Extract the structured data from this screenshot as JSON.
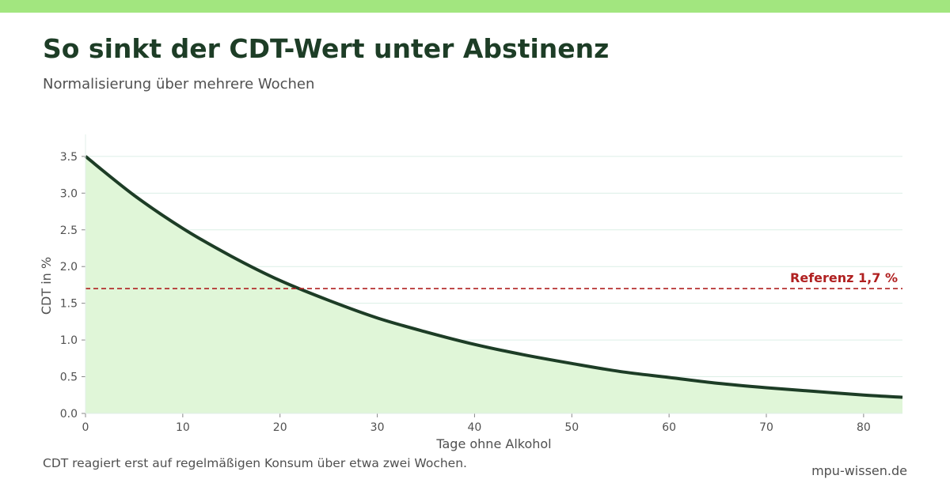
{
  "header": {
    "title": "So sinkt der CDT-Wert unter Abstinenz",
    "subtitle": "Normalisierung über mehrere Wochen"
  },
  "footer": {
    "note": "CDT reagiert erst auf regelmäßigen Konsum über etwa zwei Wochen.",
    "source": "mpu-wissen.de"
  },
  "colors": {
    "accent_bar": "#a2e67f",
    "line": "#1d3d26",
    "fill": "#e0f6d8",
    "reference": "#b02020",
    "grid": "#dcefe6"
  },
  "chart_data": {
    "type": "area",
    "xlabel": "Tage ohne Alkohol",
    "ylabel": "CDT in %",
    "xlim": [
      0,
      84
    ],
    "ylim": [
      0,
      3.8
    ],
    "xticks": [
      0,
      10,
      20,
      30,
      40,
      50,
      60,
      70,
      80
    ],
    "yticks": [
      0.0,
      0.5,
      1.0,
      1.5,
      2.0,
      2.5,
      3.0,
      3.5
    ],
    "grid": "horizontal",
    "series": [
      {
        "x": [
          0,
          5,
          10,
          15,
          20,
          25,
          30,
          35,
          40,
          45,
          50,
          55,
          60,
          65,
          70,
          75,
          80,
          84
        ],
        "values": [
          3.5,
          2.97,
          2.52,
          2.14,
          1.81,
          1.54,
          1.3,
          1.11,
          0.94,
          0.8,
          0.68,
          0.57,
          0.49,
          0.41,
          0.35,
          0.3,
          0.25,
          0.22
        ]
      }
    ],
    "reference_line": {
      "value": 1.7,
      "label": "Referenz 1,7 %"
    }
  }
}
